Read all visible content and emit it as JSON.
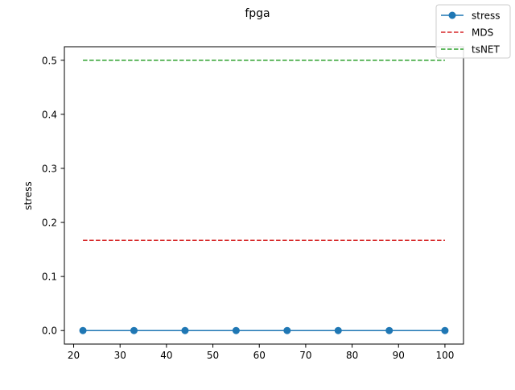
{
  "chart_data": {
    "type": "line",
    "title": "fpga",
    "xlabel": "",
    "ylabel": "stress",
    "xlim": [
      18,
      104
    ],
    "ylim": [
      -0.025,
      0.525
    ],
    "xticks": [
      20,
      30,
      40,
      50,
      60,
      70,
      80,
      90,
      100
    ],
    "yticks": [
      0.0,
      0.1,
      0.2,
      0.3,
      0.4,
      0.5
    ],
    "ytick_labels": [
      "0.0",
      "0.1",
      "0.2",
      "0.3",
      "0.4",
      "0.5"
    ],
    "grid": false,
    "legend_position": "top-right",
    "series": [
      {
        "name": "stress",
        "color": "#1f77b4",
        "style": "solid",
        "marker": "circle",
        "x": [
          22,
          33,
          44,
          55,
          66,
          77,
          88,
          100
        ],
        "y": [
          0.0,
          0.0,
          0.0,
          0.0,
          0.0,
          0.0,
          0.0,
          0.0
        ]
      },
      {
        "name": "MDS",
        "color": "#d62728",
        "style": "dashed",
        "marker": "none",
        "x": [
          22,
          100
        ],
        "y": [
          0.167,
          0.167
        ]
      },
      {
        "name": "tsNET",
        "color": "#2ca02c",
        "style": "dashed",
        "marker": "none",
        "x": [
          22,
          100
        ],
        "y": [
          0.5,
          0.5
        ]
      }
    ]
  }
}
